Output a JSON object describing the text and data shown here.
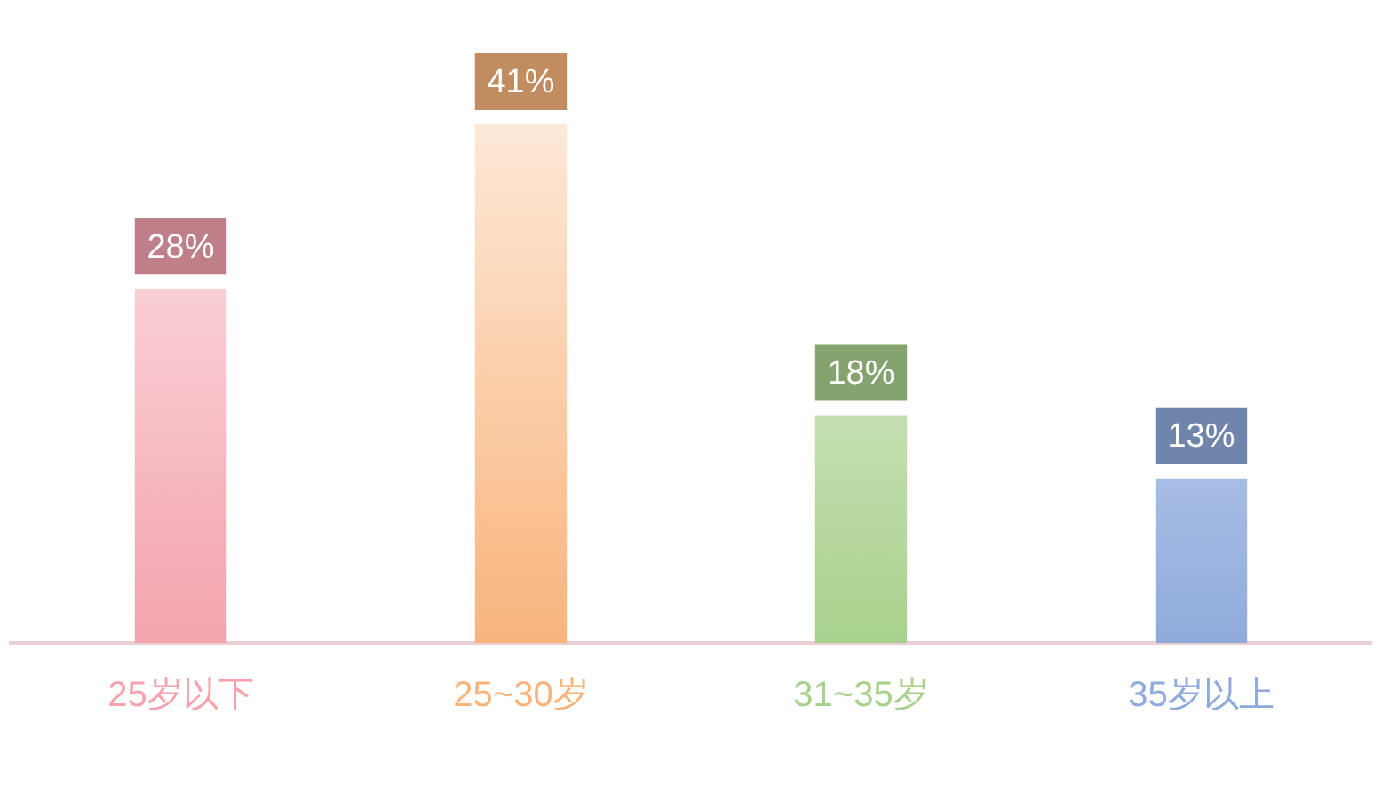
{
  "chart_data": {
    "type": "bar",
    "categories": [
      "25岁以下",
      "25~30岁",
      "31~35岁",
      "35岁以上"
    ],
    "values": [
      28,
      41,
      18,
      13
    ],
    "colors": [
      "#f4a3ae",
      "#f9b47c",
      "#a9d18e",
      "#8faadc"
    ],
    "value_labels": [
      "28%",
      "41%",
      "18%",
      "13%"
    ],
    "grid": false,
    "legend": false
  }
}
